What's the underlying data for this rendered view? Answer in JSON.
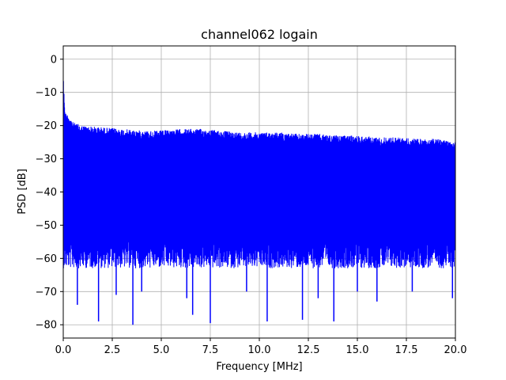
{
  "chart_data": {
    "type": "line",
    "title": "channel062 logain",
    "xlabel": "Frequency [MHz]",
    "ylabel": "PSD [dB]",
    "xlim": [
      0,
      20
    ],
    "ylim": [
      -84,
      4
    ],
    "xticks": [
      0.0,
      2.5,
      5.0,
      7.5,
      10.0,
      12.5,
      15.0,
      17.5,
      20.0
    ],
    "xtick_labels": [
      "0.0",
      "2.5",
      "5.0",
      "7.5",
      "10.0",
      "12.5",
      "15.0",
      "17.5",
      "20.0"
    ],
    "yticks": [
      0,
      -10,
      -20,
      -30,
      -40,
      -50,
      -60,
      -70,
      -80
    ],
    "ytick_labels": [
      "0",
      "−10",
      "−20",
      "−30",
      "−40",
      "−50",
      "−60",
      "−70",
      "−80"
    ],
    "grid": true,
    "series": [
      {
        "color": "#0000ff",
        "description_points": {
          "upper_envelope": {
            "x": [
              0.0,
              0.02,
              0.1,
              0.3,
              0.5,
              1.0,
              2.0,
              3.0,
              4.0,
              5.0,
              6.0,
              7.0,
              8.0,
              9.0,
              10.0,
              11.0,
              12.0,
              13.0,
              14.0,
              15.0,
              16.0,
              17.0,
              18.0,
              19.0,
              20.0
            ],
            "y": [
              1,
              -8,
              -16,
              -17,
              -19,
              -20,
              -20.5,
              -21,
              -21.5,
              -21.5,
              -21,
              -21,
              -21.5,
              -22,
              -22,
              -22,
              -22.5,
              -22.5,
              -23,
              -23,
              -23.5,
              -23.5,
              -24,
              -24,
              -24.5
            ]
          },
          "lower_floor": -55,
          "deep_dips": [
            {
              "x": 0.72,
              "y": -74
            },
            {
              "x": 1.8,
              "y": -79
            },
            {
              "x": 2.7,
              "y": -71
            },
            {
              "x": 3.55,
              "y": -80
            },
            {
              "x": 4.0,
              "y": -70
            },
            {
              "x": 6.3,
              "y": -72
            },
            {
              "x": 6.6,
              "y": -77
            },
            {
              "x": 7.5,
              "y": -79.5
            },
            {
              "x": 9.35,
              "y": -70
            },
            {
              "x": 10.4,
              "y": -79
            },
            {
              "x": 12.2,
              "y": -78.5
            },
            {
              "x": 13.0,
              "y": -72
            },
            {
              "x": 13.8,
              "y": -79
            },
            {
              "x": 15.0,
              "y": -70
            },
            {
              "x": 16.0,
              "y": -73
            },
            {
              "x": 17.8,
              "y": -70
            },
            {
              "x": 19.85,
              "y": -72
            }
          ]
        }
      }
    ]
  }
}
